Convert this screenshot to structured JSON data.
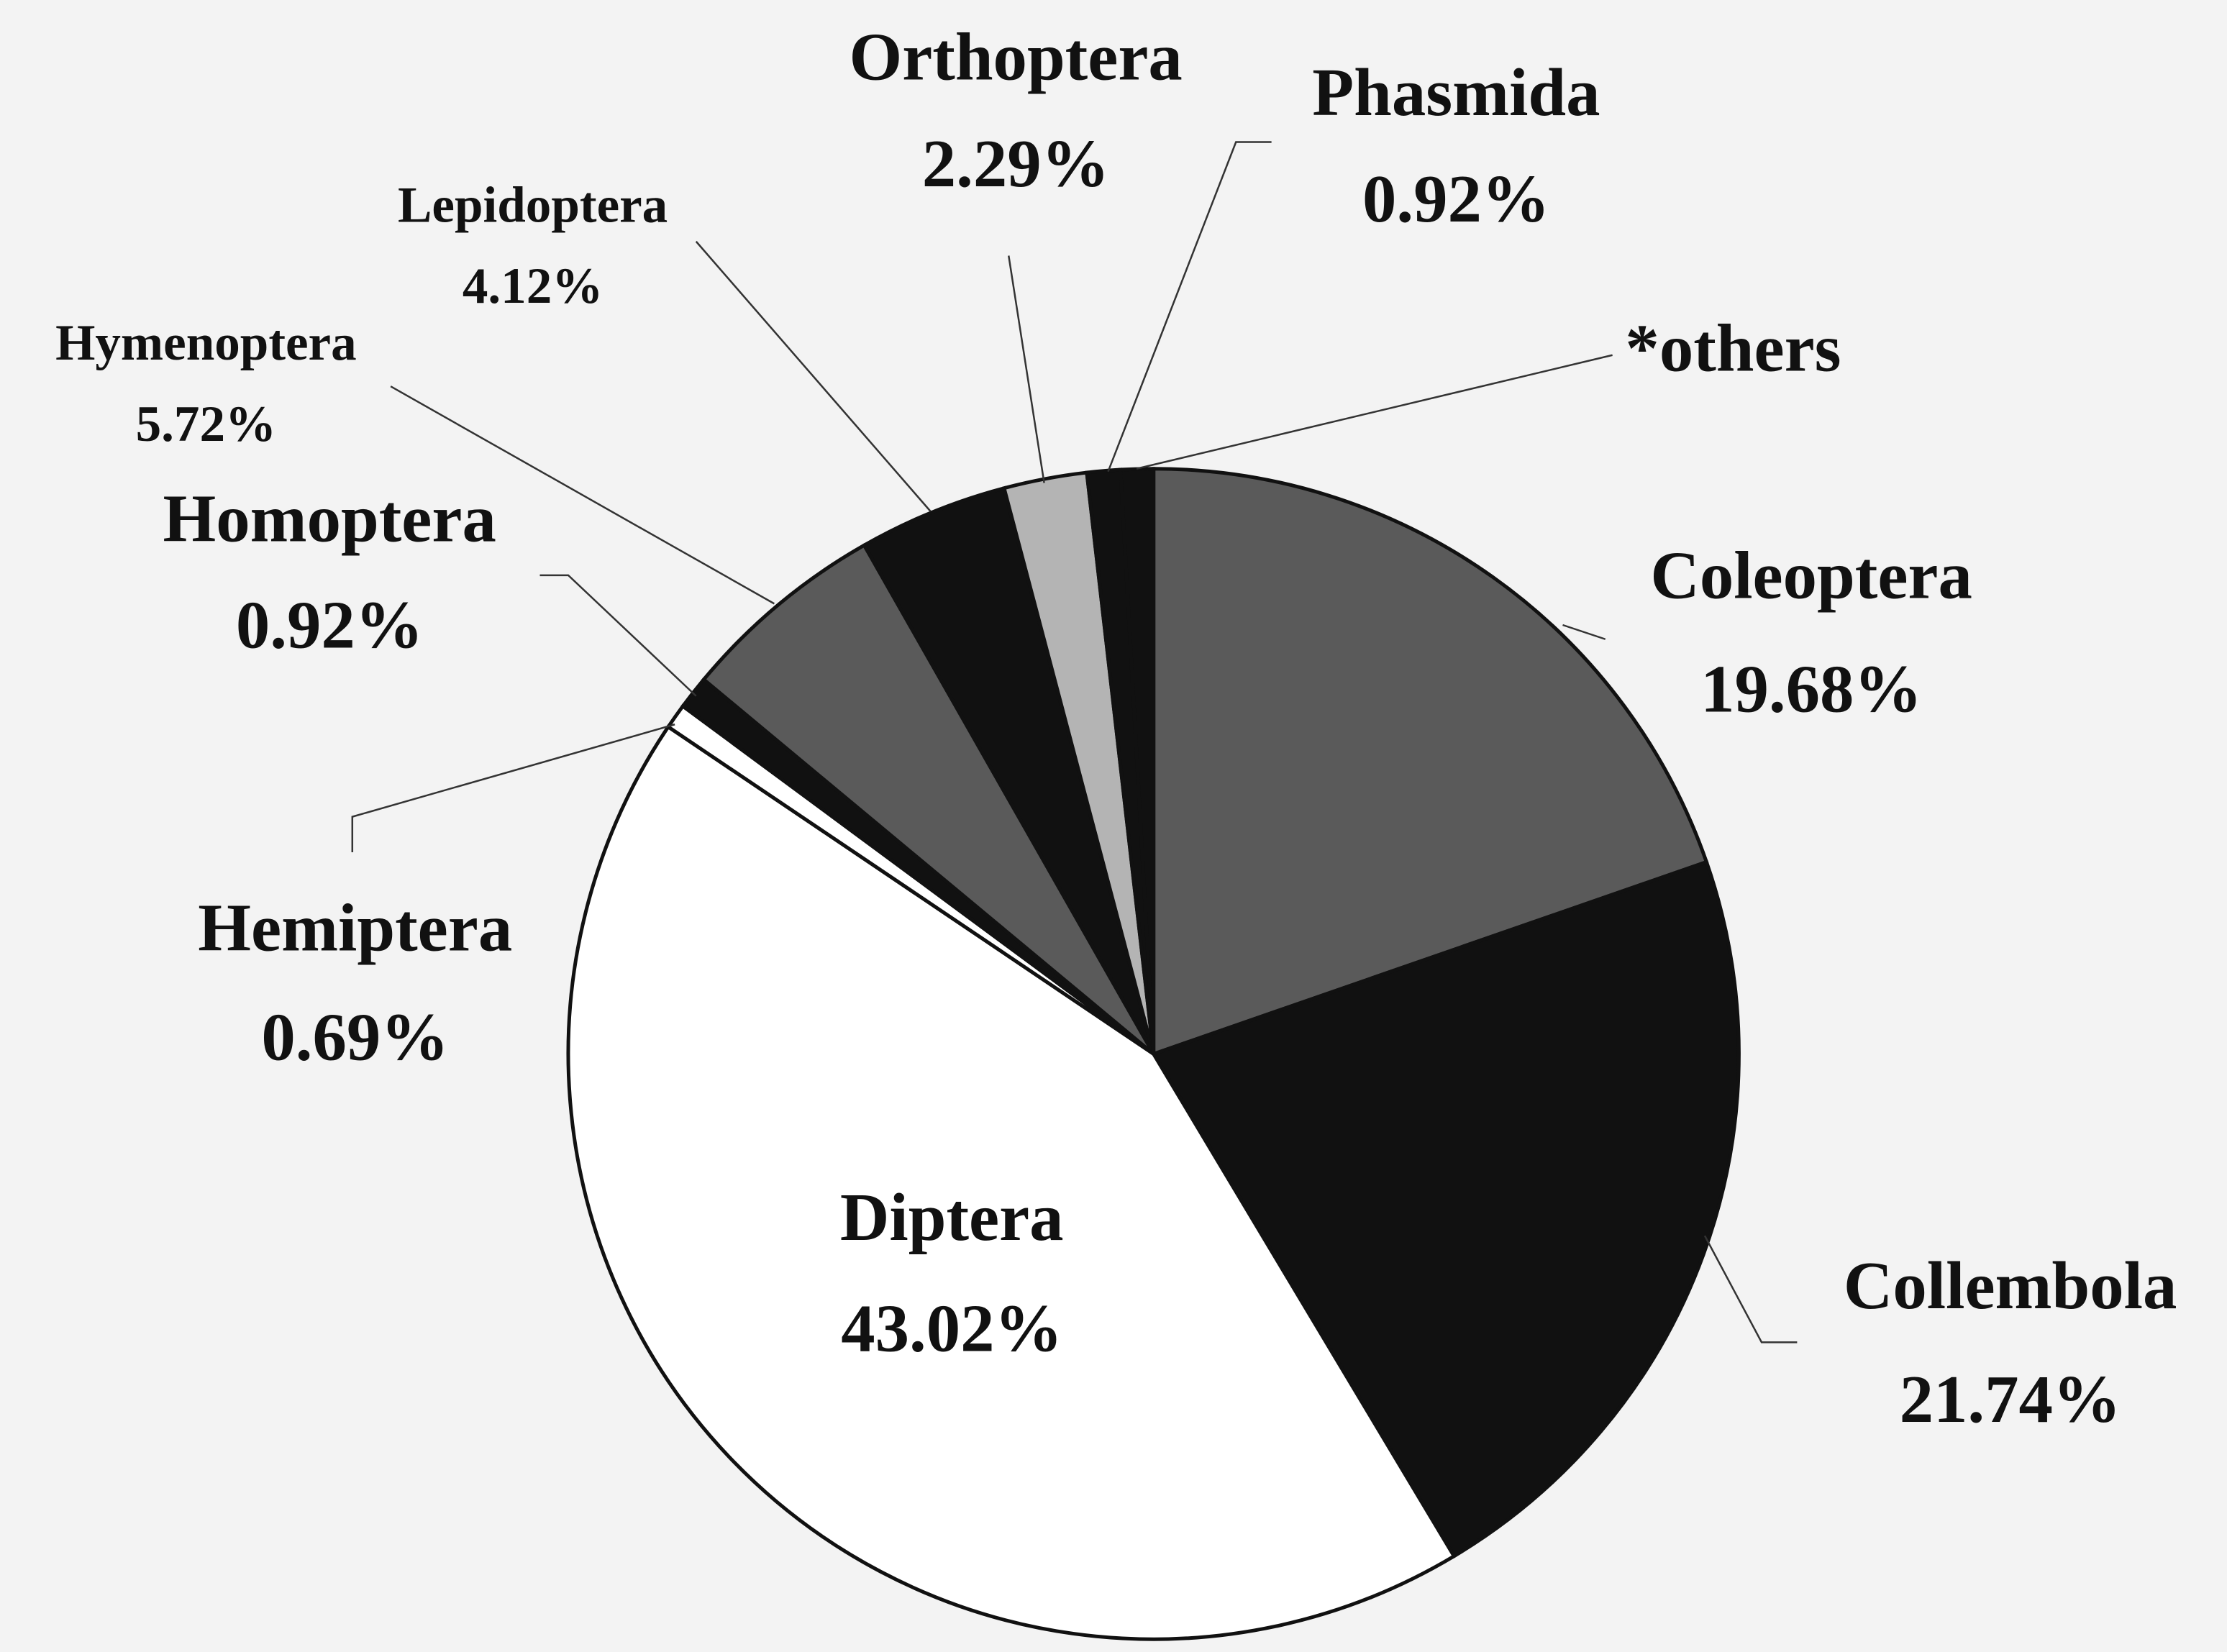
{
  "chart_data": {
    "type": "pie",
    "categories": [
      "Coleoptera",
      "Collembola",
      "Diptera",
      "Hemiptera",
      "Homoptera",
      "Hymenoptera",
      "Lepidoptera",
      "Orthoptera",
      "Phasmida",
      "*others"
    ],
    "values": [
      19.68,
      21.74,
      43.02,
      0.69,
      0.92,
      5.72,
      4.12,
      2.29,
      0.92,
      0.9
    ],
    "value_labels": [
      "19.68%",
      "21.74%",
      "43.02%",
      "0.69%",
      "0.92%",
      "5.72%",
      "4.12%",
      "2.29%",
      "0.92%",
      null
    ],
    "colors": [
      "#5a5a5a",
      "#111111",
      "#ffffff",
      "#ffffff",
      "#111111",
      "#5a5a5a",
      "#111111",
      "#b4b4b4",
      "#111111",
      "#111111"
    ]
  }
}
